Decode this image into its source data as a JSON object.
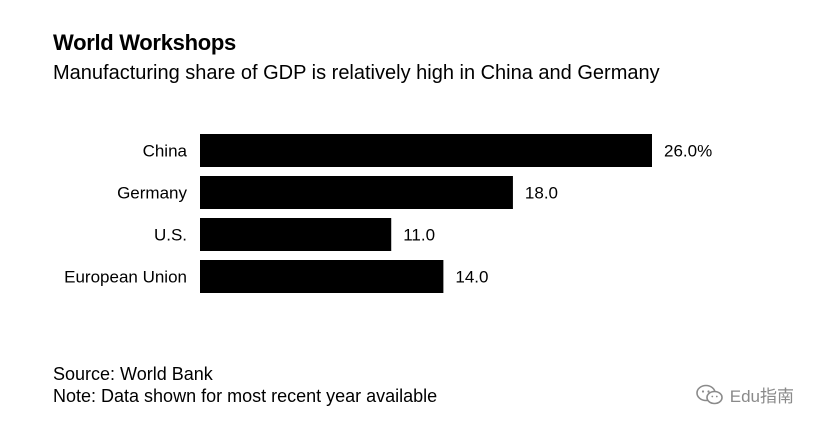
{
  "header": {
    "title": "World Workshops",
    "subtitle": "Manufacturing share of GDP is relatively high in China and Germany"
  },
  "footer": {
    "source": "Source: World Bank",
    "note": "Note: Data shown for most recent year available"
  },
  "watermark": {
    "icon": "wechat-icon",
    "text": "Edu指南"
  },
  "colors": {
    "bar": "#000000",
    "text": "#000000",
    "watermark": "#8a8a8a"
  },
  "chart_data": {
    "type": "bar",
    "orientation": "horizontal",
    "categories": [
      "China",
      "Germany",
      "U.S.",
      "European Union"
    ],
    "values": [
      26.0,
      18.0,
      11.0,
      14.0
    ],
    "value_labels": [
      "26.0%",
      "18.0",
      "11.0",
      "14.0"
    ],
    "unit": "%",
    "xlim": [
      0,
      26.0
    ],
    "grid": false,
    "legend": "none"
  }
}
